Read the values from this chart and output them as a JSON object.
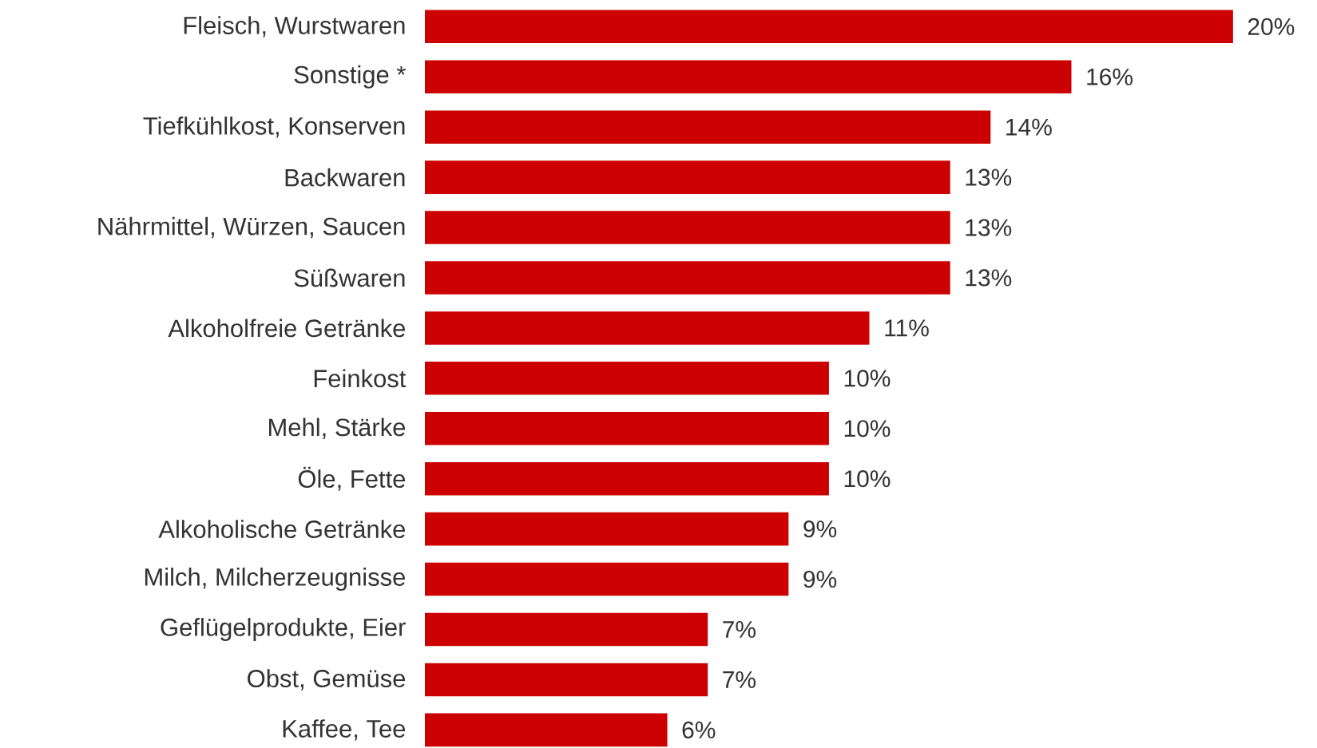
{
  "chart_data": {
    "type": "bar",
    "orientation": "horizontal",
    "categories": [
      "Fleisch, Wurstwaren",
      "Sonstige *",
      "Tiefkühlkost, Konserven",
      "Backwaren",
      "Nährmittel, Würzen, Saucen",
      "Süßwaren",
      "Alkoholfreie Getränke",
      "Feinkost",
      "Mehl, Stärke",
      "Öle, Fette",
      "Alkoholische Getränke",
      "Milch, Milcherzeugnisse",
      "Geflügelprodukte, Eier",
      "Obst, Gemüse",
      "Kaffee, Tee"
    ],
    "values": [
      20,
      16,
      14,
      13,
      13,
      13,
      11,
      10,
      10,
      10,
      9,
      9,
      7,
      7,
      6
    ],
    "color": "#cc0000",
    "value_labels": [
      "20%",
      "16%",
      "14%",
      "13%",
      "13%",
      "13%",
      "11%",
      "10%",
      "10%",
      "10%",
      "9%",
      "9%",
      "7%",
      "7%",
      "6%"
    ]
  }
}
